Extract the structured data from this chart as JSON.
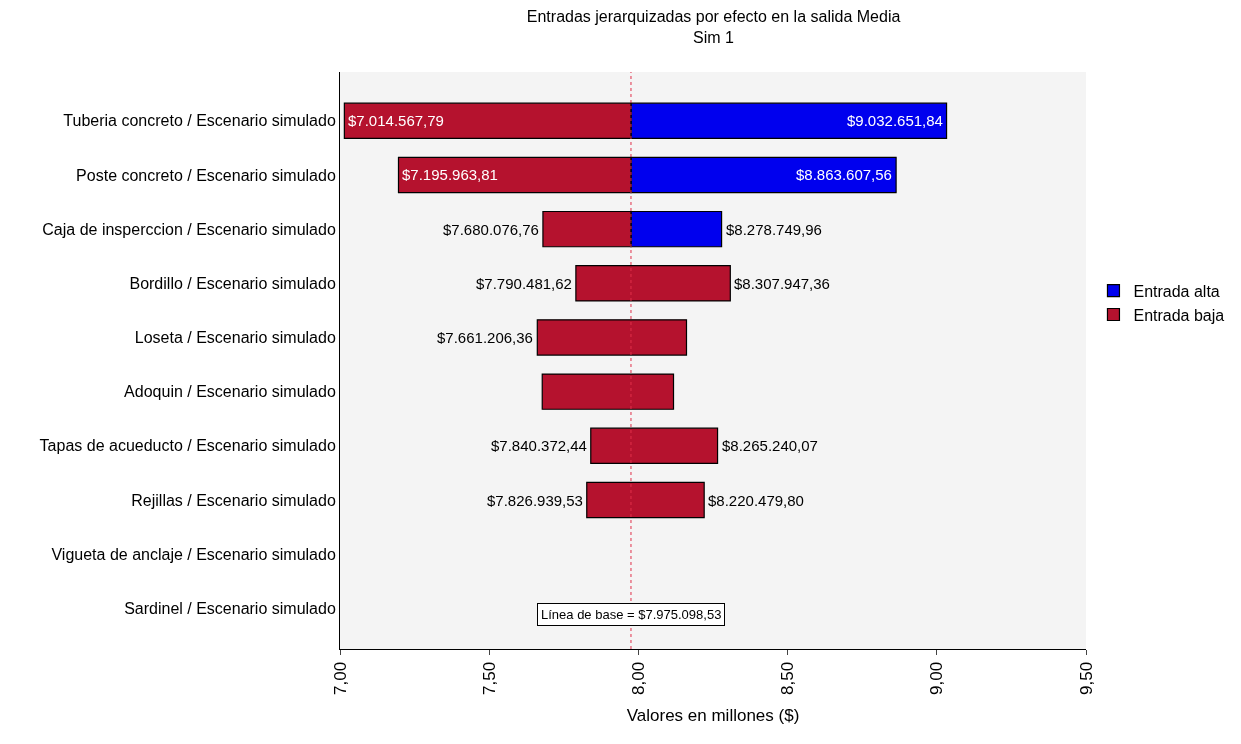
{
  "chart_data": {
    "type": "bar",
    "orientation": "horizontal",
    "title": "Entradas jerarquizadas por efecto en la salida Media",
    "subtitle": "Sim 1",
    "xlabel": "Valores en millones ($)",
    "categories": [
      "Tuberia concreto / Escenario simulado",
      "Poste concreto / Escenario simulado",
      "Caja de insperccion / Escenario simulado",
      "Bordillo / Escenario simulado",
      "Loseta / Escenario simulado",
      "Adoquin / Escenario simulado",
      "Tapas de acueducto / Escenario simulado",
      "Rejillas / Escenario simulado",
      "Vigueta de anclaje / Escenario simulado",
      "Sardinel / Escenario simulado"
    ],
    "series": [
      {
        "name": "Entrada alta",
        "color": "#0000ee",
        "base": [
          7.97509853,
          7.97509853,
          7.97509853,
          null,
          null,
          null,
          null,
          null,
          null,
          null
        ],
        "values": [
          1.0576,
          0.8885,
          0.3037,
          null,
          null,
          null,
          null,
          null,
          null,
          null
        ]
      },
      {
        "name": "Entrada baja",
        "color": "#b5122e",
        "base": [
          7.01456779,
          7.19596381,
          7.68007676,
          7.79048162,
          7.66120636,
          7.6777,
          7.84037244,
          7.82693953,
          null,
          null
        ],
        "values": [
          0.9605,
          0.7791,
          0.295,
          0.5175,
          0.5,
          0.44,
          0.4249,
          0.3935,
          null,
          null
        ]
      }
    ],
    "annotations": [
      {
        "text": "$7.014.567,79",
        "x": 7.01456779,
        "y": "Tuberia concreto / Escenario simulado"
      },
      {
        "text": "$9.032.651,84",
        "x": 9.03265184,
        "y": "Tuberia concreto / Escenario simulado"
      },
      {
        "text": "$7.195.963,81",
        "x": 7.19596381,
        "y": "Poste concreto / Escenario simulado"
      },
      {
        "text": "$8.863.607,56",
        "x": 8.86360756,
        "y": "Poste concreto / Escenario simulado"
      },
      {
        "text": "$7.680.076,76",
        "x": 7.68007676,
        "y": "Caja de insperccion / Escenario simulado"
      },
      {
        "text": "$8.278.749,96",
        "x": 8.27874996,
        "y": "Caja de insperccion / Escenario simulado"
      },
      {
        "text": "$7.790.481,62",
        "x": 7.79048162,
        "y": "Bordillo / Escenario simulado"
      },
      {
        "text": "$8.307.947,36",
        "x": 8.30794736,
        "y": "Bordillo / Escenario simulado"
      },
      {
        "text": "$7.661.206,36",
        "x": 7.66120636,
        "y": "Loseta / Escenario simulado"
      },
      {
        "text": "$7.840.372,44",
        "x": 7.84037244,
        "y": "Tapas de acueducto / Escenario simulado"
      },
      {
        "text": "$8.265.240,07",
        "x": 8.26524007,
        "y": "Tapas de acueducto / Escenario simulado"
      },
      {
        "text": "$7.826.939,53",
        "x": 7.82693953,
        "y": "Rejillas / Escenario simulado"
      },
      {
        "text": "$8.220.479,80",
        "x": 8.2204798,
        "y": "Rejillas / Escenario simulado"
      }
    ],
    "ref_lines": [
      {
        "axis": "x",
        "value": 7.97509853,
        "label": "Línea de base = $7.975.098,53",
        "color": "#e0304a",
        "line_style": "dotted"
      }
    ],
    "xlim": [
      7.0,
      9.5
    ],
    "xticks": [
      {
        "value": 7.0,
        "label": "7,00"
      },
      {
        "value": 7.5,
        "label": "7,50"
      },
      {
        "value": 8.0,
        "label": "8,00"
      },
      {
        "value": 8.5,
        "label": "8,50"
      },
      {
        "value": 9.0,
        "label": "9,00"
      },
      {
        "value": 9.5,
        "label": "9,50"
      }
    ],
    "grid": false,
    "legend": "right"
  }
}
